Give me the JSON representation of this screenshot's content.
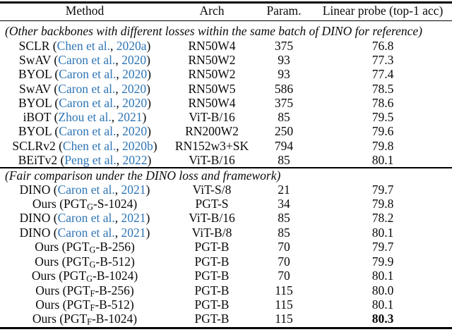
{
  "table": {
    "colors": {
      "citation_blue": "#2e75b5",
      "text": "#000000",
      "background": "#ffffff"
    },
    "header": {
      "method": "Method",
      "arch": "Arch",
      "param": "Param.",
      "acc": "Linear probe (top-1 acc)"
    },
    "sections": [
      {
        "header": "(Other backbones with different losses within the same batch of DINO for reference)",
        "rows": [
          {
            "method": {
              "prefix": "SCLR (",
              "author": "Chen et al.",
              "sep": ", ",
              "year": "2020a",
              "suffix": ")"
            },
            "arch": "RN50W4",
            "param": "375",
            "acc": "76.8"
          },
          {
            "method": {
              "prefix": "SwAV (",
              "author": "Caron et al.",
              "sep": ", ",
              "year": "2020",
              "suffix": ")"
            },
            "arch": "RN50W2",
            "param": "93",
            "acc": "77.3"
          },
          {
            "method": {
              "prefix": "BYOL (",
              "author": "Caron et al.",
              "sep": ", ",
              "year": "2020",
              "suffix": ")"
            },
            "arch": "RN50W2",
            "param": "93",
            "acc": "77.4"
          },
          {
            "method": {
              "prefix": "SwAV (",
              "author": "Caron et al.",
              "sep": ", ",
              "year": "2020",
              "suffix": ")"
            },
            "arch": "RN50W5",
            "param": "586",
            "acc": "78.5"
          },
          {
            "method": {
              "prefix": "BYOL (",
              "author": "Caron et al.",
              "sep": ", ",
              "year": "2020",
              "suffix": ")"
            },
            "arch": "RN50W4",
            "param": "375",
            "acc": "78.6"
          },
          {
            "method": {
              "prefix": "iBOT (",
              "author": "Zhou et al.",
              "sep": ", ",
              "year": "2021",
              "suffix": ")"
            },
            "arch": "ViT-B/16",
            "param": "85",
            "acc": "79.5"
          },
          {
            "method": {
              "prefix": "BYOL (",
              "author": "Caron et al.",
              "sep": ", ",
              "year": "2020",
              "suffix": ")"
            },
            "arch": "RN200W2",
            "param": "250",
            "acc": "79.6"
          },
          {
            "method": {
              "prefix": "SCLRv2 (",
              "author": "Chen et al.",
              "sep": ", ",
              "year": "2020b",
              "suffix": ")"
            },
            "arch": "RN152w3+SK",
            "param": "794",
            "acc": "79.8"
          },
          {
            "method": {
              "prefix": "BEiTv2 (",
              "author": "Peng et al.",
              "sep": ", ",
              "year": "2022",
              "suffix": ")"
            },
            "arch": "ViT-B/16",
            "param": "85",
            "acc": "80.1"
          }
        ]
      },
      {
        "header": "(Fair comparison under the DINO loss and framework)",
        "rows": [
          {
            "method": {
              "prefix": "DINO (",
              "author": "Caron et al.",
              "sep": ", ",
              "year": "2021",
              "suffix": ")"
            },
            "arch": "ViT-S/8",
            "param": "21",
            "acc": "79.7"
          },
          {
            "method": {
              "prefix": "Ours (PGT",
              "sub": "G",
              "suffix": "-S-1024)"
            },
            "arch": "PGT-S",
            "param": "34",
            "acc": "79.8"
          },
          {
            "method": {
              "prefix": "DINO (",
              "author": "Caron et al.",
              "sep": ", ",
              "year": "2021",
              "suffix": ")"
            },
            "arch": "ViT-B/16",
            "param": "85",
            "acc": "78.2"
          },
          {
            "method": {
              "prefix": "DINO (",
              "author": "Caron et al.",
              "sep": ", ",
              "year": "2021",
              "suffix": ")"
            },
            "arch": "ViT-B/8",
            "param": "85",
            "acc": "80.1"
          },
          {
            "method": {
              "prefix": "Ours (PGT",
              "sub": "G",
              "suffix": "-B-256)"
            },
            "arch": "PGT-B",
            "param": "70",
            "acc": "79.7"
          },
          {
            "method": {
              "prefix": "Ours (PGT",
              "sub": "G",
              "suffix": "-B-512)"
            },
            "arch": "PGT-B",
            "param": "70",
            "acc": "79.9"
          },
          {
            "method": {
              "prefix": "Ours (PGT",
              "sub": "G",
              "suffix": "-B-1024)"
            },
            "arch": "PGT-B",
            "param": "70",
            "acc": "80.1"
          },
          {
            "method": {
              "prefix": "Ours (PGT",
              "sub": "F",
              "suffix": "-B-256)"
            },
            "arch": "PGT-B",
            "param": "115",
            "acc": "80.0"
          },
          {
            "method": {
              "prefix": "Ours (PGT",
              "sub": "F",
              "suffix": "-B-512)"
            },
            "arch": "PGT-B",
            "param": "115",
            "acc": "80.1"
          },
          {
            "method": {
              "prefix": "Ours (PGT",
              "sub": "F",
              "suffix": "-B-1024)"
            },
            "arch": "PGT-B",
            "param": "115",
            "acc": "80.3",
            "acc_bold": true
          }
        ]
      }
    ]
  }
}
